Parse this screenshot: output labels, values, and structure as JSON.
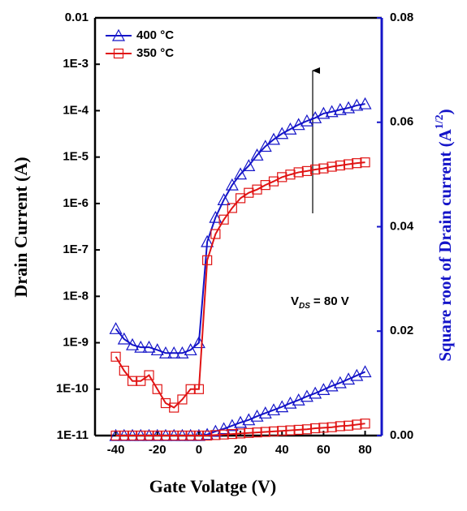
{
  "chart_data": {
    "type": "line",
    "xlabel": "Gate Volatge (V)",
    "ylabel": "Drain Current (A)",
    "y2label": [
      "Square root of Drain current (A",
      "1/2",
      ")"
    ],
    "annotation": [
      "V",
      "DS",
      "= 80 V"
    ],
    "xlim": [
      -50,
      88
    ],
    "xticks": [
      -40,
      -20,
      0,
      20,
      40,
      60,
      80
    ],
    "ylim": [
      1e-11,
      0.01
    ],
    "ylog": true,
    "yticks": [
      {
        "value": 1e-11,
        "label": "1E-11"
      },
      {
        "value": 1e-10,
        "label": "1E-10"
      },
      {
        "value": 1e-09,
        "label": "1E-9"
      },
      {
        "value": 1e-08,
        "label": "1E-8"
      },
      {
        "value": 1e-07,
        "label": "1E-7"
      },
      {
        "value": 1e-06,
        "label": "1E-6"
      },
      {
        "value": 1e-05,
        "label": "1E-5"
      },
      {
        "value": 0.0001,
        "label": "1E-4"
      },
      {
        "value": 0.001,
        "label": "1E-3"
      },
      0.01
    ],
    "y2lim": [
      0,
      0.08
    ],
    "y2ticks": [
      {
        "value": 0,
        "label": "0.00"
      },
      {
        "value": 0.02,
        "label": "0.02"
      },
      {
        "value": 0.04,
        "label": "0.04"
      },
      {
        "value": 0.06,
        "label": "0.06"
      },
      {
        "value": 0.08,
        "label": "0.08"
      }
    ],
    "legend": "upper left",
    "x": [
      -40,
      -36,
      -32,
      -28,
      -24,
      -20,
      -16,
      -12,
      -8,
      -4,
      0,
      4,
      8,
      12,
      16,
      20,
      24,
      28,
      32,
      36,
      40,
      44,
      48,
      52,
      56,
      60,
      64,
      68,
      72,
      76,
      80
    ],
    "series": [
      {
        "name": "400 °C",
        "color": "#1414c8",
        "marker": "triangle",
        "values": [
          2e-09,
          1.2e-09,
          9e-10,
          8e-10,
          8e-10,
          7e-10,
          6e-10,
          6e-10,
          6e-10,
          7e-10,
          1e-09,
          1.5e-07,
          5e-07,
          1.2e-06,
          2.5e-06,
          4.3e-06,
          6.5e-06,
          1.1e-05,
          1.7e-05,
          2.4e-05,
          3.2e-05,
          4e-05,
          5e-05,
          6e-05,
          7e-05,
          8.7e-05,
          9.5e-05,
          0.000105,
          0.000115,
          0.00013,
          0.00014
        ]
      },
      {
        "name": "350 °C",
        "color": "#e01414",
        "marker": "square",
        "values": [
          5e-10,
          2.5e-10,
          1.5e-10,
          1.5e-10,
          2e-10,
          1e-10,
          5e-11,
          4e-11,
          6e-11,
          1e-10,
          1e-10,
          6e-08,
          2.2e-07,
          4.5e-07,
          8e-07,
          1.3e-06,
          1.7e-06,
          2e-06,
          2.5e-06,
          3e-06,
          3.7e-06,
          4.2e-06,
          4.7e-06,
          5e-06,
          5.4e-06,
          5.7e-06,
          6.2e-06,
          6.6e-06,
          7e-06,
          7.4e-06,
          7.7e-06
        ]
      },
      {
        "color": "#1414c8",
        "marker": "triangle",
        "axis": "y2",
        "values": [
          0,
          0,
          0,
          0,
          0,
          0,
          0,
          0,
          0,
          0,
          0,
          0.0002,
          0.0008,
          0.0013,
          0.0019,
          0.0025,
          0.003,
          0.0037,
          0.0043,
          0.0049,
          0.0055,
          0.0062,
          0.0068,
          0.0075,
          0.0081,
          0.0088,
          0.0095,
          0.0101,
          0.0108,
          0.0115,
          0.0122
        ]
      },
      {
        "color": "#e01414",
        "marker": "square",
        "axis": "y2",
        "values": [
          0,
          0,
          0,
          0,
          0,
          0,
          0,
          0,
          0,
          0,
          0,
          0,
          0.0001,
          0.0002,
          0.0003,
          0.0004,
          0.0005,
          0.0006,
          0.0007,
          0.0008,
          0.0009,
          0.001,
          0.0011,
          0.0012,
          0.0014,
          0.0015,
          0.0016,
          0.0018,
          0.0019,
          0.0021,
          0.0023
        ]
      }
    ]
  }
}
